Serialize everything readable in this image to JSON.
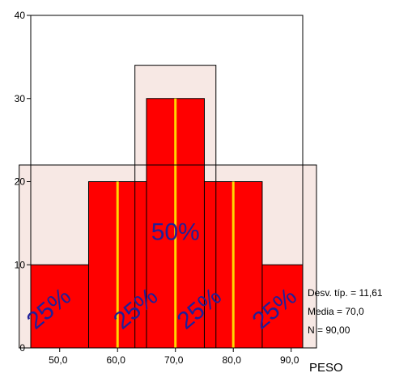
{
  "chart_data": {
    "type": "bar",
    "subtype": "histogram",
    "xlabel": "PESO",
    "ylabel": "",
    "xlim": [
      45,
      92
    ],
    "ylim": [
      0,
      40
    ],
    "x_ticks": [
      50,
      60,
      70,
      80,
      90
    ],
    "x_tick_labels": [
      "50,0",
      "60,0",
      "70,0",
      "80,0",
      "90,0"
    ],
    "y_ticks": [
      0,
      10,
      20,
      30,
      40
    ],
    "y_tick_labels": [
      "0",
      "10",
      "20",
      "30",
      "40"
    ],
    "bins": [
      {
        "from": 45,
        "to": 55,
        "count": 10
      },
      {
        "from": 55,
        "to": 65,
        "count": 20
      },
      {
        "from": 65,
        "to": 75,
        "count": 30
      },
      {
        "from": 75,
        "to": 85,
        "count": 20
      },
      {
        "from": 85,
        "to": 95,
        "count": 10
      }
    ],
    "bar_color": "#ff0000",
    "marker_lines": [
      60,
      70,
      80
    ],
    "marker_color": "#ffd700",
    "overlay_regions": [
      {
        "x_from": 43,
        "x_to": 97,
        "height": 22
      },
      {
        "x_from": 63,
        "x_to": 77,
        "height": 34
      }
    ],
    "overlay_color": "#f7e8e4",
    "annotations": [
      {
        "text": "50%",
        "x": 70,
        "y": 13
      },
      {
        "text": "25%",
        "x": 49,
        "y": 4,
        "rotated": true
      },
      {
        "text": "25%",
        "x": 64,
        "y": 4,
        "rotated": true
      },
      {
        "text": "25%",
        "x": 75,
        "y": 4,
        "rotated": true
      },
      {
        "text": "25%",
        "x": 88,
        "y": 4,
        "rotated": true
      }
    ],
    "stats": [
      "Desv. típ. = 11,61",
      "Media = 70,0",
      "N = 90,00"
    ],
    "grid": false
  }
}
